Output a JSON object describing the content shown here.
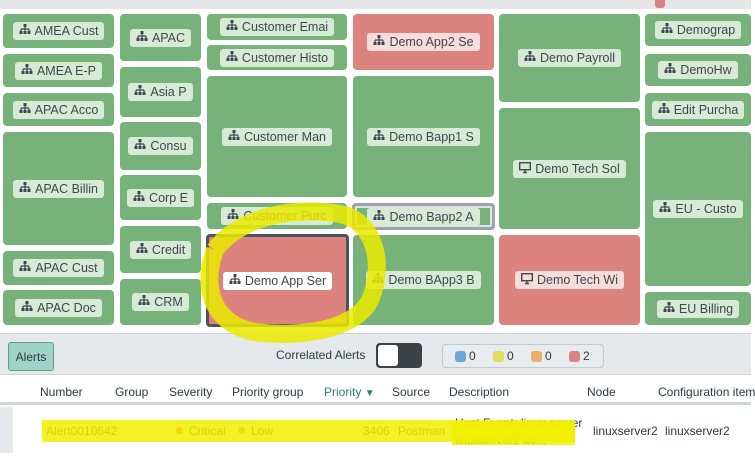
{
  "colors": {
    "green": "#77b27a",
    "red": "#dc8380",
    "blue": "#6aa8d8",
    "yellow": "#e3dc5c",
    "orange": "#e9b06c",
    "highlight": "#f2ef00"
  },
  "tiles": [
    {
      "label": "AMEA Cust",
      "icon": "hierarchy-icon",
      "status": "green"
    },
    {
      "label": "AMEA E-P",
      "icon": "hierarchy-icon",
      "status": "green"
    },
    {
      "label": "APAC Acco",
      "icon": "hierarchy-icon",
      "status": "green"
    },
    {
      "label": "APAC Billin",
      "icon": "hierarchy-icon",
      "status": "green"
    },
    {
      "label": "APAC Cust",
      "icon": "hierarchy-icon",
      "status": "green"
    },
    {
      "label": "APAC Doc",
      "icon": "hierarchy-icon",
      "status": "green"
    },
    {
      "label": "APAC",
      "icon": "hierarchy-icon",
      "status": "green"
    },
    {
      "label": "Asia P",
      "icon": "hierarchy-icon",
      "status": "green"
    },
    {
      "label": "Consu",
      "icon": "hierarchy-icon",
      "status": "green"
    },
    {
      "label": "Corp E",
      "icon": "hierarchy-icon",
      "status": "green"
    },
    {
      "label": "Credit",
      "icon": "hierarchy-icon",
      "status": "green"
    },
    {
      "label": "CRM",
      "icon": "hierarchy-icon",
      "status": "green"
    },
    {
      "label": "Customer Emai",
      "icon": "hierarchy-icon",
      "status": "green"
    },
    {
      "label": "Customer Histo",
      "icon": "hierarchy-icon",
      "status": "green"
    },
    {
      "label": "Customer Man",
      "icon": "hierarchy-icon",
      "status": "green"
    },
    {
      "label": "Customer Purc",
      "icon": "hierarchy-icon",
      "status": "green"
    },
    {
      "label": "Demo App Ser",
      "icon": "hierarchy-icon",
      "status": "red",
      "selected": true
    },
    {
      "label": "Demo App2 Se",
      "icon": "hierarchy-icon",
      "status": "red"
    },
    {
      "label": "Demo Bapp1 S",
      "icon": "hierarchy-icon",
      "status": "green"
    },
    {
      "label": "Demo Bapp2 A",
      "icon": "hierarchy-icon",
      "status": "green"
    },
    {
      "label": "Demo BApp3 B",
      "icon": "hierarchy-icon",
      "status": "green"
    },
    {
      "label": "Demo Payroll",
      "icon": "hierarchy-icon",
      "status": "green"
    },
    {
      "label": "Demo Tech Sol",
      "icon": "monitor-icon",
      "status": "green"
    },
    {
      "label": "Demo Tech Wi",
      "icon": "monitor-icon",
      "status": "red"
    },
    {
      "label": "Demograp",
      "icon": "hierarchy-icon",
      "status": "green"
    },
    {
      "label": "DemoHw",
      "icon": "hierarchy-icon",
      "status": "green"
    },
    {
      "label": "Edit Purcha",
      "icon": "hierarchy-icon",
      "status": "green"
    },
    {
      "label": "EU - Custo",
      "icon": "hierarchy-icon",
      "status": "green"
    },
    {
      "label": "EU Billing",
      "icon": "hierarchy-icon",
      "status": "green"
    }
  ],
  "panel": {
    "alerts_label": "Alerts",
    "correlated_label": "Correlated Alerts",
    "correlated_on": false,
    "counts": [
      {
        "color": "blue",
        "value": "0"
      },
      {
        "color": "yellow",
        "value": "0"
      },
      {
        "color": "orange",
        "value": "0"
      },
      {
        "color": "red",
        "value": "2"
      }
    ]
  },
  "table": {
    "columns": [
      "Number",
      "Group",
      "Severity",
      "Priority group",
      "Priority",
      "Source",
      "Description",
      "Node",
      "Configuration item"
    ],
    "sort_column": "Priority",
    "rows": [
      {
        "number": "Alert0010642",
        "group": "",
        "severity": "Critical",
        "priority_group": "Low",
        "priority": "3406",
        "source": "Postman",
        "description_1": "Host Event:-linux server",
        "description_2": "linuxserver2 do...",
        "node": "linuxserver2",
        "ci": "linuxserver2"
      }
    ]
  }
}
